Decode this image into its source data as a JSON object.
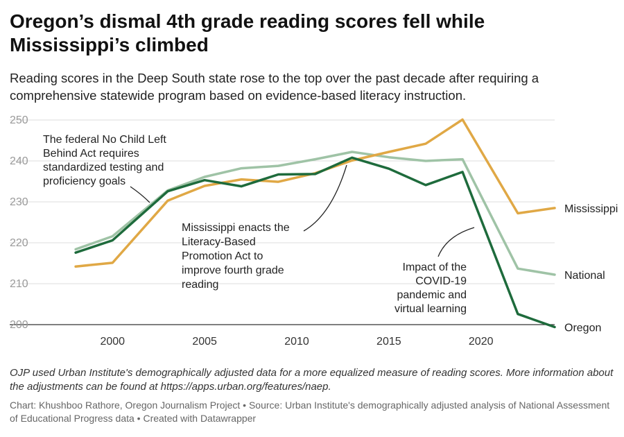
{
  "title": "Oregon’s dismal 4th grade reading scores fell while Mississippi’s climbed",
  "subtitle": "Reading scores in the Deep South state rose to the top over the past decade after requiring a comprehensive statewide program based on evidence-based literacy instruction.",
  "notes": "OJP used Urban Institute's demographically adjusted data for a more equalized measure of reading scores. More information about the adjustments can be found at https://apps.urban.org/features/naep.",
  "credit": "Chart: Khushboo Rathore, Oregon Journalism Project • Source: Urban Institute's demographically adjusted analysis of National Assessment of Educational Progress data • Created with Datawrapper",
  "chart_data": {
    "type": "line",
    "xlim": [
      1996,
      2024
    ],
    "ylim": [
      200,
      250
    ],
    "x_ticks": [
      2000,
      2005,
      2010,
      2015,
      2020
    ],
    "y_ticks": [
      200,
      210,
      220,
      230,
      240,
      250
    ],
    "grid": true,
    "legend": "direct labels at line ends",
    "series": [
      {
        "name": "Mississippi",
        "color": "#e0a845",
        "x": [
          1998,
          2000,
          2003,
          2005,
          2007,
          2009,
          2011,
          2013,
          2015,
          2017,
          2019,
          2022,
          2024
        ],
        "values": [
          214.2,
          215.1,
          230.3,
          233.9,
          235.5,
          234.9,
          237.0,
          240.1,
          242.2,
          244.2,
          250.1,
          227.2,
          228.5
        ]
      },
      {
        "name": "National",
        "color": "#9fc3a6",
        "x": [
          1998,
          2000,
          2003,
          2005,
          2007,
          2009,
          2011,
          2013,
          2015,
          2017,
          2019,
          2022,
          2024
        ],
        "values": [
          218.4,
          221.6,
          232.8,
          236.1,
          238.2,
          238.8,
          240.4,
          242.2,
          240.9,
          240.0,
          240.4,
          213.7,
          212.2
        ]
      },
      {
        "name": "Oregon",
        "color": "#1e6b3c",
        "x": [
          1998,
          2000,
          2003,
          2005,
          2007,
          2009,
          2011,
          2013,
          2015,
          2017,
          2019,
          2022,
          2024
        ],
        "values": [
          217.6,
          220.6,
          232.6,
          235.3,
          233.8,
          236.7,
          236.8,
          240.8,
          238.1,
          234.1,
          237.3,
          202.6,
          199.4
        ]
      }
    ],
    "annotations": [
      {
        "text": [
          "The federal No Child Left",
          "Behind Act requires",
          "standardized testing and",
          "proficiency goals"
        ]
      },
      {
        "text": [
          "Mississippi enacts the",
          "Literacy-Based",
          "Promotion Act to",
          "improve fourth grade",
          "reading"
        ]
      },
      {
        "text": [
          "Impact of the",
          "COVID-19",
          "pandemic and",
          "virtual learning"
        ]
      }
    ]
  }
}
